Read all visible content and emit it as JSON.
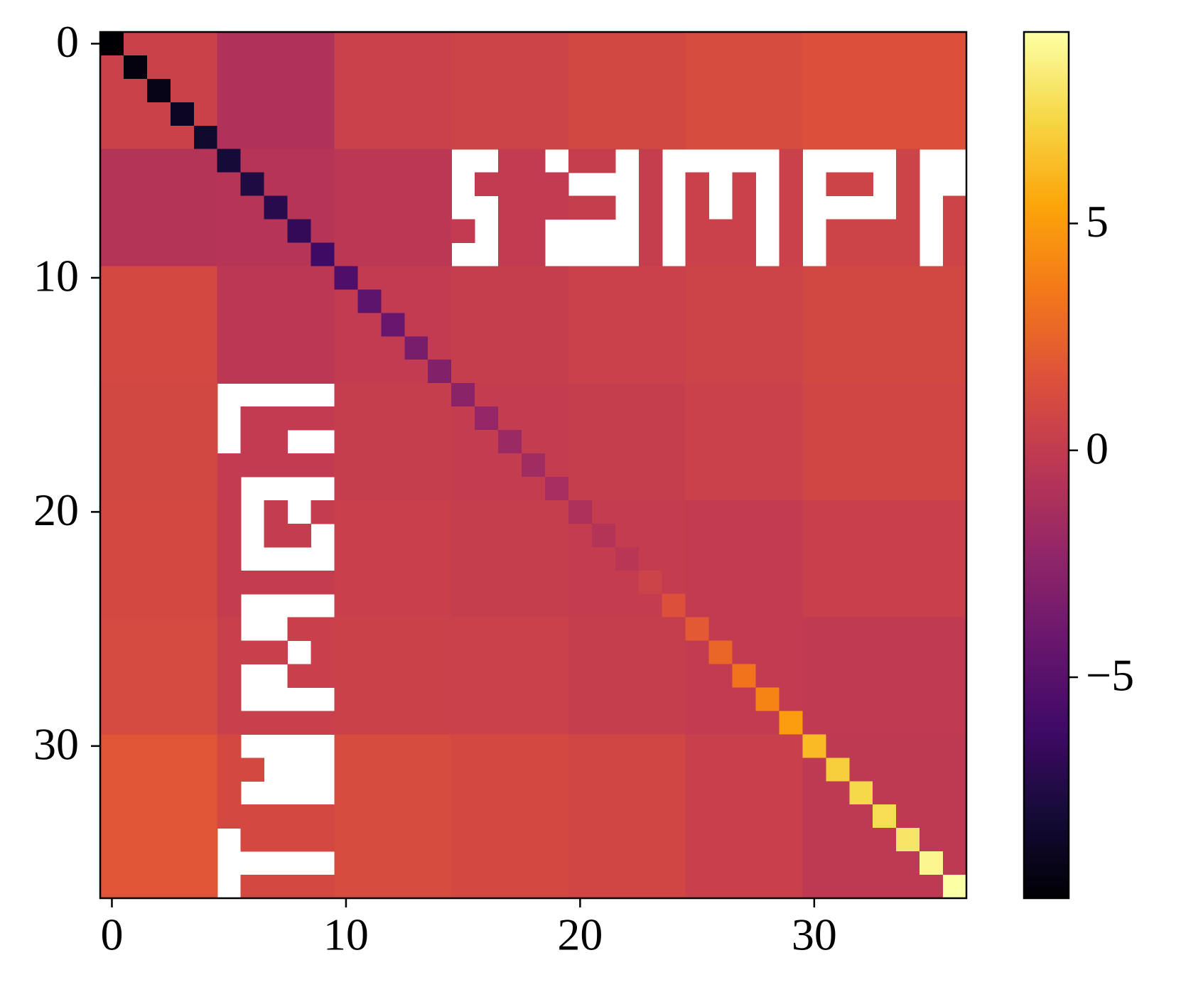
{
  "chart_data": {
    "type": "heatmap",
    "colormap": "inferno",
    "clim": [
      -9.87,
      9.22
    ],
    "xlim": [
      -0.5,
      36.5
    ],
    "ylim": [
      36.5,
      -0.5
    ],
    "xticks": [
      0,
      10,
      20,
      30
    ],
    "yticks": [
      0,
      10,
      20,
      30
    ],
    "cbticks": [
      {
        "value": -5,
        "label": "−5"
      },
      0,
      5
    ],
    "z": [
      [
        -9.87,
        0.5,
        0.5,
        0.5,
        0.5,
        -0.9,
        -0.9,
        -0.9,
        -0.9,
        -0.9,
        0.4,
        0.4,
        0.4,
        0.4,
        0.4,
        0.6,
        0.6,
        0.6,
        0.6,
        0.6,
        0.9,
        0.9,
        0.9,
        0.9,
        0.9,
        1.2,
        1.2,
        1.2,
        1.2,
        1.2,
        1.5,
        1.5,
        1.5,
        1.5,
        1.5,
        1.5,
        1.5
      ],
      [
        0.5,
        -9.5,
        0.5,
        0.5,
        0.5,
        -0.9,
        -0.9,
        -0.9,
        -0.9,
        -0.9,
        0.4,
        0.4,
        0.4,
        0.4,
        0.4,
        0.6,
        0.6,
        0.6,
        0.6,
        0.6,
        0.9,
        0.9,
        0.9,
        0.9,
        0.9,
        1.2,
        1.2,
        1.2,
        1.2,
        1.2,
        1.5,
        1.5,
        1.5,
        1.5,
        1.5,
        1.5,
        1.5
      ],
      [
        0.5,
        0.5,
        -9.2,
        0.5,
        0.5,
        -0.9,
        -0.9,
        -0.9,
        -0.9,
        -0.9,
        0.4,
        0.4,
        0.4,
        0.4,
        0.4,
        0.6,
        0.6,
        0.6,
        0.6,
        0.6,
        0.9,
        0.9,
        0.9,
        0.9,
        0.9,
        1.2,
        1.2,
        1.2,
        1.2,
        1.2,
        1.5,
        1.5,
        1.5,
        1.5,
        1.5,
        1.5,
        1.5
      ],
      [
        0.5,
        0.5,
        0.5,
        -8.8,
        0.5,
        -0.9,
        -0.9,
        -0.9,
        -0.9,
        -0.9,
        0.4,
        0.4,
        0.4,
        0.4,
        0.4,
        0.6,
        0.6,
        0.6,
        0.6,
        0.6,
        0.9,
        0.9,
        0.9,
        0.9,
        0.9,
        1.2,
        1.2,
        1.2,
        1.2,
        1.2,
        1.5,
        1.5,
        1.5,
        1.5,
        1.5,
        1.5,
        1.5
      ],
      [
        0.5,
        0.5,
        0.5,
        0.5,
        -8.4,
        -0.9,
        -0.9,
        -0.9,
        -0.9,
        -0.9,
        0.4,
        0.4,
        0.4,
        0.4,
        0.4,
        0.6,
        0.6,
        0.6,
        0.6,
        0.6,
        0.9,
        0.9,
        0.9,
        0.9,
        0.9,
        1.2,
        1.2,
        1.2,
        1.2,
        1.2,
        1.5,
        1.5,
        1.5,
        1.5,
        1.5,
        1.5,
        1.5
      ],
      [
        -0.7,
        -0.7,
        -0.7,
        -0.7,
        -0.7,
        -8.0,
        -0.6,
        -0.6,
        -0.6,
        -0.6,
        -0.3,
        -0.3,
        -0.3,
        -0.3,
        -0.3,
        null,
        null,
        0,
        0,
        null,
        0.2,
        0.2,
        null,
        0.2,
        null,
        null,
        null,
        null,
        null,
        0.4,
        null,
        null,
        null,
        null,
        0.6,
        null,
        null
      ],
      [
        -0.7,
        -0.7,
        -0.7,
        -0.7,
        -0.7,
        -0.6,
        -7.6,
        -0.6,
        -0.6,
        -0.6,
        -0.3,
        -0.3,
        -0.3,
        -0.3,
        -0.3,
        null,
        0,
        0,
        0,
        0,
        null,
        null,
        null,
        0.2,
        null,
        0.4,
        null,
        0.4,
        null,
        0.4,
        null,
        0.6,
        0.6,
        null,
        0.6,
        null,
        null
      ],
      [
        -0.7,
        -0.7,
        -0.7,
        -0.7,
        -0.7,
        -0.6,
        -0.6,
        -7.2,
        -0.6,
        -0.6,
        -0.3,
        -0.3,
        -0.3,
        -0.3,
        -0.3,
        null,
        null,
        0,
        0,
        0,
        0.2,
        0.2,
        null,
        0.2,
        null,
        0.4,
        null,
        0.4,
        null,
        0.4,
        null,
        null,
        null,
        null,
        0.6,
        null,
        0.6
      ],
      [
        -0.7,
        -0.7,
        -0.7,
        -0.7,
        -0.7,
        -0.6,
        -0.6,
        -0.6,
        -6.7,
        -0.6,
        -0.3,
        -0.3,
        -0.3,
        -0.3,
        -0.3,
        0,
        null,
        0,
        0,
        null,
        null,
        null,
        null,
        0.2,
        null,
        0.4,
        0.4,
        0.4,
        null,
        0.4,
        null,
        0.6,
        0.6,
        0.6,
        0.6,
        null,
        0.6
      ],
      [
        -0.7,
        -0.7,
        -0.7,
        -0.7,
        -0.7,
        -0.6,
        -0.6,
        -0.6,
        -0.6,
        -6.2,
        -0.3,
        -0.3,
        -0.3,
        -0.3,
        -0.3,
        null,
        null,
        0,
        0,
        null,
        null,
        null,
        null,
        0.2,
        null,
        0.4,
        0.4,
        0.4,
        null,
        0.4,
        null,
        0.6,
        0.6,
        0.6,
        0.6,
        null,
        0.6
      ],
      [
        1,
        1,
        1,
        1,
        1,
        -0.3,
        -0.3,
        -0.3,
        -0.3,
        -0.3,
        -5.5,
        0,
        0,
        0,
        0,
        0.2,
        0.2,
        0.2,
        0.2,
        0.2,
        0.4,
        0.4,
        0.4,
        0.4,
        0.4,
        0.6,
        0.6,
        0.6,
        0.6,
        0.6,
        0.9,
        0.9,
        0.9,
        0.9,
        0.9,
        0.9,
        0.9
      ],
      [
        1,
        1,
        1,
        1,
        1,
        -0.3,
        -0.3,
        -0.3,
        -0.3,
        -0.3,
        0,
        -4.8,
        0,
        0,
        0,
        0.2,
        0.2,
        0.2,
        0.2,
        0.2,
        0.4,
        0.4,
        0.4,
        0.4,
        0.4,
        0.6,
        0.6,
        0.6,
        0.6,
        0.6,
        0.9,
        0.9,
        0.9,
        0.9,
        0.9,
        0.9,
        0.9
      ],
      [
        1,
        1,
        1,
        1,
        1,
        -0.3,
        -0.3,
        -0.3,
        -0.3,
        -0.3,
        0,
        0,
        -4.2,
        0,
        0,
        0.2,
        0.2,
        0.2,
        0.2,
        0.2,
        0.4,
        0.4,
        0.4,
        0.4,
        0.4,
        0.6,
        0.6,
        0.6,
        0.6,
        0.6,
        0.9,
        0.9,
        0.9,
        0.9,
        0.9,
        0.9,
        0.9
      ],
      [
        1,
        1,
        1,
        1,
        1,
        -0.3,
        -0.3,
        -0.3,
        -0.3,
        -0.3,
        0,
        0,
        0,
        -3.5,
        0,
        0.2,
        0.2,
        0.2,
        0.2,
        0.2,
        0.4,
        0.4,
        0.4,
        0.4,
        0.4,
        0.6,
        0.6,
        0.6,
        0.6,
        0.6,
        0.9,
        0.9,
        0.9,
        0.9,
        0.9,
        0.9,
        0.9
      ],
      [
        1,
        1,
        1,
        1,
        1,
        -0.3,
        -0.3,
        -0.3,
        -0.3,
        -0.3,
        0,
        0,
        0,
        0,
        -3.0,
        0.2,
        0.2,
        0.2,
        0.2,
        0.2,
        0.4,
        0.4,
        0.4,
        0.4,
        0.4,
        0.6,
        0.6,
        0.6,
        0.6,
        0.6,
        0.9,
        0.9,
        0.9,
        0.9,
        0.9,
        0.9,
        0.9
      ],
      [
        0.9,
        0.9,
        0.9,
        0.9,
        0.9,
        null,
        null,
        null,
        null,
        null,
        0.2,
        0.2,
        0.2,
        0.2,
        0.2,
        -2.6,
        0.1,
        0.1,
        0.1,
        0.1,
        0.2,
        0.2,
        0.2,
        0.2,
        0.2,
        0.4,
        0.4,
        0.4,
        0.4,
        0.4,
        0.8,
        0.8,
        0.8,
        0.8,
        0.8,
        0.8,
        0.8
      ],
      [
        0.9,
        0.9,
        0.9,
        0.9,
        0.9,
        null,
        0,
        0,
        0,
        0,
        0.2,
        0.2,
        0.2,
        0.2,
        0.2,
        0.1,
        -2.2,
        0.1,
        0.1,
        0.1,
        0.2,
        0.2,
        0.2,
        0.2,
        0.2,
        0.4,
        0.4,
        0.4,
        0.4,
        0.4,
        0.8,
        0.8,
        0.8,
        0.8,
        0.8,
        0.8,
        0.8
      ],
      [
        0.9,
        0.9,
        0.9,
        0.9,
        0.9,
        null,
        0,
        0,
        null,
        null,
        0.2,
        0.2,
        0.2,
        0.2,
        0.2,
        0.1,
        0.1,
        -1.9,
        0.1,
        0.1,
        0.2,
        0.2,
        0.2,
        0.2,
        0.2,
        0.4,
        0.4,
        0.4,
        0.4,
        0.4,
        0.8,
        0.8,
        0.8,
        0.8,
        0.8,
        0.8,
        0.8
      ],
      [
        0.9,
        0.9,
        0.9,
        0.9,
        0.9,
        0,
        0,
        0,
        0,
        0,
        0.2,
        0.2,
        0.2,
        0.2,
        0.2,
        0.1,
        0.1,
        0.1,
        -1.6,
        0.1,
        0.2,
        0.2,
        0.2,
        0.2,
        0.2,
        0.4,
        0.4,
        0.4,
        0.4,
        0.4,
        0.8,
        0.8,
        0.8,
        0.8,
        0.8,
        0.8,
        0.8
      ],
      [
        0.9,
        0.9,
        0.9,
        0.9,
        0.9,
        0,
        null,
        null,
        null,
        null,
        0.2,
        0.2,
        0.2,
        0.2,
        0.2,
        0.1,
        0.1,
        0.1,
        0.1,
        -1.3,
        0.2,
        0.2,
        0.2,
        0.2,
        0.2,
        0.4,
        0.4,
        0.4,
        0.4,
        0.4,
        0.8,
        0.8,
        0.8,
        0.8,
        0.8,
        0.8,
        0.8
      ],
      [
        1,
        1,
        1,
        1,
        1,
        0.1,
        null,
        0.1,
        null,
        0.1,
        0.3,
        0.3,
        0.3,
        0.3,
        0.3,
        0.2,
        0.2,
        0.2,
        0.2,
        0.2,
        -1.0,
        0.1,
        0.1,
        0.1,
        0.1,
        0,
        0,
        0,
        0,
        0,
        0.3,
        0.3,
        0.3,
        0.3,
        0.3,
        0.3,
        0.3
      ],
      [
        1,
        1,
        1,
        1,
        1,
        0.1,
        null,
        0.1,
        0.1,
        null,
        0.3,
        0.3,
        0.3,
        0.3,
        0.3,
        0.2,
        0.2,
        0.2,
        0.2,
        0.2,
        0.1,
        -0.7,
        0.1,
        0.1,
        0.1,
        0,
        0,
        0,
        0,
        0,
        0.3,
        0.3,
        0.3,
        0.3,
        0.3,
        0.3,
        0.3
      ],
      [
        1,
        1,
        1,
        1,
        1,
        0.1,
        null,
        null,
        null,
        null,
        0.3,
        0.3,
        0.3,
        0.3,
        0.3,
        0.2,
        0.2,
        0.2,
        0.2,
        0.2,
        0.1,
        0.1,
        -0.4,
        0.1,
        0.1,
        0,
        0,
        0,
        0,
        0,
        0.3,
        0.3,
        0.3,
        0.3,
        0.3,
        0.3,
        0.3
      ],
      [
        1,
        1,
        1,
        1,
        1,
        0.1,
        0.1,
        0.1,
        0.1,
        0.1,
        0.3,
        0.3,
        0.3,
        0.3,
        0.3,
        0.2,
        0.2,
        0.2,
        0.2,
        0.2,
        0.1,
        0.1,
        0.1,
        0.6,
        0.1,
        0,
        0,
        0,
        0,
        0,
        0.3,
        0.3,
        0.3,
        0.3,
        0.3,
        0.3,
        0.3
      ],
      [
        1,
        1,
        1,
        1,
        1,
        0.1,
        null,
        null,
        null,
        null,
        0.3,
        0.3,
        0.3,
        0.3,
        0.3,
        0.2,
        0.2,
        0.2,
        0.2,
        0.2,
        0.1,
        0.1,
        0.1,
        0.1,
        1.5,
        0,
        0,
        0,
        0,
        0,
        0.3,
        0.3,
        0.3,
        0.3,
        0.3,
        0.3,
        0.3
      ],
      [
        1.1,
        1.1,
        1.1,
        1.1,
        1.1,
        0.3,
        null,
        null,
        0.3,
        0.3,
        0.5,
        0.5,
        0.5,
        0.5,
        0.5,
        0.4,
        0.4,
        0.4,
        0.4,
        0.4,
        0.2,
        0.2,
        0.2,
        0.2,
        0.2,
        2.0,
        0,
        0,
        0,
        0,
        -0.1,
        -0.1,
        -0.1,
        -0.1,
        -0.1,
        -0.1,
        -0.1
      ],
      [
        1.1,
        1.1,
        1.1,
        1.1,
        1.1,
        0.3,
        0.3,
        0.3,
        null,
        0.3,
        0.5,
        0.5,
        0.5,
        0.5,
        0.5,
        0.4,
        0.4,
        0.4,
        0.4,
        0.4,
        0.2,
        0.2,
        0.2,
        0.2,
        0.2,
        0,
        2.6,
        0,
        0,
        0,
        -0.1,
        -0.1,
        -0.1,
        -0.1,
        -0.1,
        -0.1,
        -0.1
      ],
      [
        1.1,
        1.1,
        1.1,
        1.1,
        1.1,
        0.3,
        null,
        null,
        0.3,
        0.3,
        0.5,
        0.5,
        0.5,
        0.5,
        0.5,
        0.4,
        0.4,
        0.4,
        0.4,
        0.4,
        0.2,
        0.2,
        0.2,
        0.2,
        0.2,
        0,
        0,
        3.3,
        0,
        0,
        -0.1,
        -0.1,
        -0.1,
        -0.1,
        -0.1,
        -0.1,
        -0.1
      ],
      [
        1.1,
        1.1,
        1.1,
        1.1,
        1.1,
        0.3,
        null,
        null,
        null,
        null,
        0.5,
        0.5,
        0.5,
        0.5,
        0.5,
        0.4,
        0.4,
        0.4,
        0.4,
        0.4,
        0.2,
        0.2,
        0.2,
        0.2,
        0.2,
        0,
        0,
        0,
        4.0,
        0,
        -0.1,
        -0.1,
        -0.1,
        -0.1,
        -0.1,
        -0.1,
        -0.1
      ],
      [
        1.1,
        1.1,
        1.1,
        1.1,
        1.1,
        0.3,
        0.3,
        0.3,
        0.3,
        0.3,
        0.5,
        0.5,
        0.5,
        0.5,
        0.5,
        0.4,
        0.4,
        0.4,
        0.4,
        0.4,
        0.2,
        0.2,
        0.2,
        0.2,
        0.2,
        0,
        0,
        0,
        0,
        5.0,
        -0.1,
        -0.1,
        -0.1,
        -0.1,
        -0.1,
        -0.1,
        -0.1
      ],
      [
        1.8,
        1.8,
        1.8,
        1.8,
        1.8,
        1,
        null,
        null,
        null,
        null,
        1.2,
        1.2,
        1.2,
        1.2,
        1.2,
        1,
        1,
        1,
        1,
        1,
        0.8,
        0.8,
        0.8,
        0.8,
        0.8,
        0.3,
        0.3,
        0.3,
        0.3,
        0.3,
        6.2,
        -0.2,
        -0.2,
        -0.2,
        -0.2,
        -0.2,
        -0.2
      ],
      [
        1.8,
        1.8,
        1.8,
        1.8,
        1.8,
        1,
        1,
        null,
        null,
        null,
        1.2,
        1.2,
        1.2,
        1.2,
        1.2,
        1,
        1,
        1,
        1,
        1,
        0.8,
        0.8,
        0.8,
        0.8,
        0.8,
        0.3,
        0.3,
        0.3,
        0.3,
        0.3,
        -0.2,
        7.0,
        -0.2,
        -0.2,
        -0.2,
        -0.2,
        -0.2
      ],
      [
        1.8,
        1.8,
        1.8,
        1.8,
        1.8,
        1,
        null,
        null,
        null,
        null,
        1.2,
        1.2,
        1.2,
        1.2,
        1.2,
        1,
        1,
        1,
        1,
        1,
        0.8,
        0.8,
        0.8,
        0.8,
        0.8,
        0.3,
        0.3,
        0.3,
        0.3,
        0.3,
        -0.2,
        -0.2,
        7.4,
        -0.2,
        -0.2,
        -0.2,
        -0.2
      ],
      [
        1.8,
        1.8,
        1.8,
        1.8,
        1.8,
        1,
        1,
        1,
        1,
        1,
        1.2,
        1.2,
        1.2,
        1.2,
        1.2,
        1,
        1,
        1,
        1,
        1,
        0.8,
        0.8,
        0.8,
        0.8,
        0.8,
        0.3,
        0.3,
        0.3,
        0.3,
        0.3,
        -0.2,
        -0.2,
        -0.2,
        7.6,
        -0.2,
        -0.2,
        -0.2
      ],
      [
        1.8,
        1.8,
        1.8,
        1.8,
        1.8,
        null,
        1,
        1,
        1,
        1,
        1.2,
        1.2,
        1.2,
        1.2,
        1.2,
        1,
        1,
        1,
        1,
        1,
        0.8,
        0.8,
        0.8,
        0.8,
        0.8,
        0.3,
        0.3,
        0.3,
        0.3,
        0.3,
        -0.2,
        -0.2,
        -0.2,
        -0.2,
        8.0,
        -0.2,
        -0.2
      ],
      [
        1.8,
        1.8,
        1.8,
        1.8,
        1.8,
        null,
        null,
        null,
        null,
        null,
        1.2,
        1.2,
        1.2,
        1.2,
        1.2,
        1,
        1,
        1,
        1,
        1,
        0.8,
        0.8,
        0.8,
        0.8,
        0.8,
        0.3,
        0.3,
        0.3,
        0.3,
        0.3,
        -0.2,
        -0.2,
        -0.2,
        -0.2,
        -0.2,
        8.8,
        -0.2
      ],
      [
        1.8,
        1.8,
        1.8,
        1.8,
        1.8,
        null,
        1,
        1,
        1,
        1,
        1.2,
        1.2,
        1.2,
        1.2,
        1.2,
        1,
        1,
        1,
        1,
        1,
        0.8,
        0.8,
        0.8,
        0.8,
        0.8,
        0.3,
        0.3,
        0.3,
        0.3,
        0.3,
        -0.2,
        -0.2,
        -0.2,
        -0.2,
        -0.2,
        -0.2,
        9.22
      ]
    ]
  }
}
